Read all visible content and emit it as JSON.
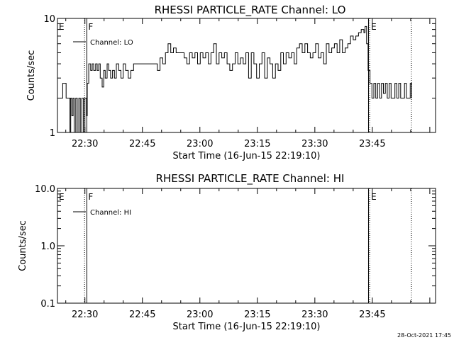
{
  "chart_data": [
    {
      "type": "line",
      "title": "RHESSI PARTICLE_RATE Channel: LO",
      "xlabel": "Start Time (16-Jun-15 22:19:10)",
      "ylabel": "Counts/sec",
      "yscale": "log",
      "ylim": [
        1,
        10
      ],
      "xlim_minutes": [
        22.833,
        121.5
      ],
      "x_tick_labels": [
        "22:30",
        "22:45",
        "23:00",
        "23:15",
        "23:30",
        "23:45"
      ],
      "x_tick_minutes": [
        30,
        45,
        60,
        75,
        90,
        105
      ],
      "y_tick_labels": [
        "1",
        "10"
      ],
      "y_tick_values": [
        1,
        10
      ],
      "legend": {
        "position": "top-left",
        "entries": [
          "Channel: LO"
        ]
      },
      "markers": [
        {
          "label": "E",
          "minute": 22.833,
          "style": "none"
        },
        {
          "label": "",
          "minute": 29.9,
          "style": "dotted"
        },
        {
          "label": "F",
          "minute": 30.5,
          "style": "solid"
        },
        {
          "label": "",
          "minute": 104.0,
          "style": "solid"
        },
        {
          "label": "E",
          "minute": 104.3,
          "style": "dotted"
        },
        {
          "label": "",
          "minute": 115.2,
          "style": "dotted"
        }
      ],
      "series": [
        {
          "x": [
            22.83,
            23.3,
            24.2,
            25.1,
            25.6,
            26.1,
            26.3,
            26.6,
            26.9,
            27.2,
            27.6,
            28.0,
            28.4,
            28.8,
            29.2,
            29.6,
            30.0,
            30.4,
            30.6,
            31.0,
            31.5,
            31.9,
            32.3,
            32.8,
            33.2,
            33.6,
            34.0,
            34.5,
            34.9,
            35.3,
            35.8,
            36.2,
            36.7,
            37.2,
            37.7,
            38.2,
            38.8,
            39.4,
            40.0,
            40.6,
            41.3,
            42.0,
            42.7,
            43.3,
            44.0,
            44.7,
            45.4,
            46.1,
            46.8,
            47.5,
            48.2,
            48.9,
            49.6,
            50.3,
            51.0,
            51.7,
            52.4,
            53.1,
            53.8,
            54.5,
            55.2,
            55.9,
            56.6,
            57.3,
            58.0,
            58.7,
            59.4,
            60.1,
            60.8,
            61.5,
            62.2,
            62.9,
            63.6,
            64.3,
            65.0,
            65.7,
            66.4,
            67.1,
            67.8,
            68.5,
            69.2,
            69.9,
            70.6,
            71.3,
            72.0,
            72.7,
            73.4,
            74.1,
            74.8,
            75.5,
            76.2,
            76.9,
            77.6,
            78.3,
            79.0,
            79.7,
            80.4,
            81.1,
            81.8,
            82.5,
            83.2,
            83.9,
            84.6,
            85.3,
            86.0,
            86.7,
            87.4,
            88.1,
            88.8,
            89.5,
            90.2,
            90.9,
            91.6,
            92.3,
            93.0,
            93.7,
            94.4,
            95.1,
            95.8,
            96.5,
            97.2,
            97.9,
            98.6,
            99.3,
            100.0,
            100.7,
            101.4,
            102.1,
            102.8,
            103.1,
            103.5,
            103.9,
            104.4,
            104.9,
            105.4,
            105.9,
            106.4,
            106.9,
            107.4,
            107.9,
            108.4,
            108.9,
            109.4,
            109.9,
            110.4,
            110.9,
            111.4,
            111.9,
            112.4,
            112.9,
            113.4,
            113.9,
            114.4,
            114.9,
            115.3
          ],
          "y": [
            2,
            2,
            2.7,
            2,
            2,
            1,
            2,
            1.4,
            2,
            1,
            2,
            1,
            2,
            1,
            2,
            1,
            2,
            1.4,
            2.7,
            4,
            3.5,
            4,
            3.5,
            4,
            3.5,
            4,
            3,
            2.5,
            3.5,
            3,
            4,
            3.5,
            3,
            3.5,
            3,
            4,
            3.5,
            3,
            4,
            3.5,
            3,
            3.5,
            4,
            4,
            4,
            4,
            4,
            4,
            4,
            4,
            4,
            3.5,
            4.5,
            4,
            5,
            6,
            5,
            5.5,
            5,
            5,
            5,
            4.5,
            4,
            5,
            4.5,
            5,
            4,
            5,
            4.5,
            5,
            4,
            5,
            6,
            4,
            5,
            4.5,
            5,
            4,
            3.5,
            4,
            5,
            4,
            4.5,
            4,
            5,
            3,
            5,
            4,
            3,
            4,
            5,
            3,
            4.5,
            4,
            3,
            4,
            3.5,
            5,
            4,
            5,
            4.5,
            5,
            4,
            5.5,
            6,
            5,
            6,
            5,
            4.5,
            5,
            6,
            4.5,
            5,
            4,
            6,
            5,
            5.5,
            6,
            5,
            6.5,
            5,
            5.5,
            6,
            7,
            6.5,
            7,
            7.5,
            8,
            7.5,
            8.5,
            6,
            3.5,
            2.7,
            2,
            2.7,
            2,
            2.7,
            2,
            2.7,
            2.2,
            2.7,
            2,
            2.7,
            2,
            2,
            2.7,
            2,
            2.7,
            2,
            2,
            2.7,
            2,
            2,
            2.7,
            2
          ]
        }
      ]
    },
    {
      "type": "line",
      "title": "RHESSI PARTICLE_RATE Channel: HI",
      "xlabel": "Start Time (16-Jun-15 22:19:10)",
      "ylabel": "Counts/sec",
      "yscale": "log",
      "ylim": [
        0.1,
        10
      ],
      "xlim_minutes": [
        22.833,
        121.5
      ],
      "x_tick_labels": [
        "22:30",
        "22:45",
        "23:00",
        "23:15",
        "23:30",
        "23:45"
      ],
      "x_tick_minutes": [
        30,
        45,
        60,
        75,
        90,
        105
      ],
      "y_tick_labels": [
        "0.1",
        "1.0",
        "10.0"
      ],
      "y_tick_values": [
        0.1,
        1,
        10
      ],
      "legend": {
        "position": "top-left",
        "entries": [
          "Channel: HI"
        ]
      },
      "markers": [
        {
          "label": "E",
          "minute": 22.833,
          "style": "none"
        },
        {
          "label": "",
          "minute": 29.9,
          "style": "dotted"
        },
        {
          "label": "F",
          "minute": 30.5,
          "style": "solid"
        },
        {
          "label": "",
          "minute": 104.0,
          "style": "solid"
        },
        {
          "label": "E",
          "minute": 104.3,
          "style": "dotted"
        },
        {
          "label": "",
          "minute": 115.2,
          "style": "dotted"
        }
      ],
      "series": [
        {
          "x": [],
          "y": []
        }
      ]
    }
  ],
  "footer": {
    "date_stamp": "28-Oct-2021 17:45"
  }
}
